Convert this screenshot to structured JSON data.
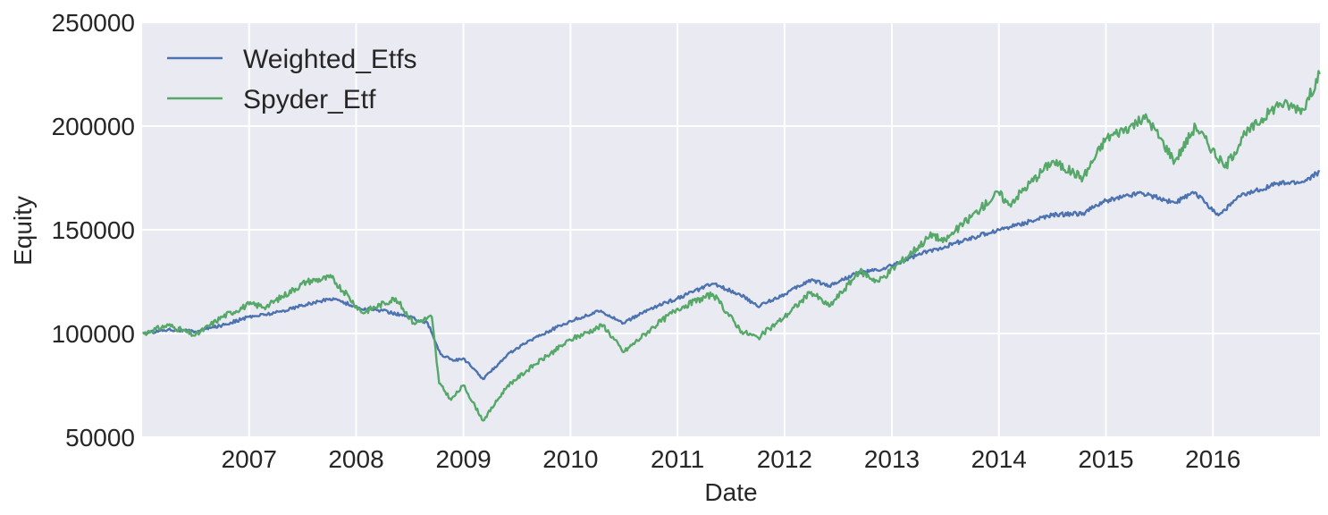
{
  "chart_data": {
    "type": "line",
    "title": "",
    "xlabel": "Date",
    "ylabel": "Equity",
    "xlim": [
      "2006-01-01",
      "2016-12-31"
    ],
    "ylim": [
      50000,
      250000
    ],
    "x_ticks": [
      "2007",
      "2008",
      "2009",
      "2010",
      "2011",
      "2012",
      "2013",
      "2014",
      "2015",
      "2016"
    ],
    "y_ticks": [
      "50000",
      "100000",
      "150000",
      "200000",
      "250000"
    ],
    "grid": true,
    "legend_position": "top-left",
    "series": [
      {
        "name": "Weighted_Etfs",
        "color": "#4c72b0",
        "x": [
          "2006-01-03",
          "2006-04-01",
          "2006-07-01",
          "2006-10-01",
          "2007-01-01",
          "2007-04-01",
          "2007-07-15",
          "2007-10-15",
          "2008-01-15",
          "2008-04-01",
          "2008-07-01",
          "2008-09-01",
          "2008-10-15",
          "2008-12-01",
          "2009-01-01",
          "2009-03-09",
          "2009-06-01",
          "2009-09-01",
          "2010-01-01",
          "2010-04-15",
          "2010-07-01",
          "2010-10-01",
          "2011-01-01",
          "2011-05-01",
          "2011-08-01",
          "2011-10-01",
          "2012-01-01",
          "2012-04-01",
          "2012-06-01",
          "2012-09-01",
          "2012-12-01",
          "2013-04-01",
          "2013-07-01",
          "2014-01-01",
          "2014-07-01",
          "2014-10-15",
          "2015-01-01",
          "2015-05-01",
          "2015-08-24",
          "2015-11-01",
          "2016-01-20",
          "2016-04-01",
          "2016-08-01",
          "2016-11-04",
          "2016-12-30"
        ],
        "values": [
          100000,
          102000,
          101000,
          104000,
          108000,
          110000,
          114000,
          117000,
          112000,
          111000,
          108000,
          105000,
          90000,
          87000,
          88000,
          78000,
          90000,
          98000,
          106000,
          111000,
          105000,
          112000,
          117000,
          124000,
          119000,
          113000,
          119000,
          126000,
          123000,
          129000,
          131000,
          138000,
          142000,
          150000,
          157000,
          158000,
          164000,
          168000,
          163000,
          168000,
          157000,
          166000,
          172000,
          173000,
          178000
        ]
      },
      {
        "name": "Spyder_Etf",
        "color": "#55a868",
        "x": [
          "2006-01-03",
          "2006-04-01",
          "2006-07-01",
          "2006-10-01",
          "2007-01-01",
          "2007-03-01",
          "2007-07-15",
          "2007-10-09",
          "2008-01-22",
          "2008-05-15",
          "2008-07-15",
          "2008-09-15",
          "2008-10-10",
          "2008-11-20",
          "2009-01-01",
          "2009-03-09",
          "2009-06-01",
          "2009-09-01",
          "2010-01-01",
          "2010-04-23",
          "2010-07-01",
          "2010-10-01",
          "2011-01-01",
          "2011-05-01",
          "2011-08-08",
          "2011-10-03",
          "2012-01-01",
          "2012-04-01",
          "2012-06-01",
          "2012-09-14",
          "2012-11-15",
          "2013-05-21",
          "2013-06-24",
          "2013-12-31",
          "2014-02-03",
          "2014-07-01",
          "2014-10-15",
          "2015-01-01",
          "2015-05-21",
          "2015-08-24",
          "2015-11-03",
          "2016-02-11",
          "2016-04-20",
          "2016-08-15",
          "2016-11-04",
          "2016-12-30"
        ],
        "values": [
          100000,
          104000,
          99000,
          108000,
          114000,
          113000,
          125000,
          127000,
          110000,
          117000,
          105000,
          108000,
          76000,
          68000,
          75000,
          58000,
          75000,
          85000,
          97000,
          104000,
          91000,
          102000,
          112000,
          119000,
          101000,
          98000,
          108000,
          120000,
          113000,
          130000,
          125000,
          148000,
          144000,
          168000,
          162000,
          183000,
          175000,
          194000,
          204000,
          183000,
          200000,
          180000,
          196000,
          211000,
          208000,
          225000
        ]
      }
    ]
  }
}
